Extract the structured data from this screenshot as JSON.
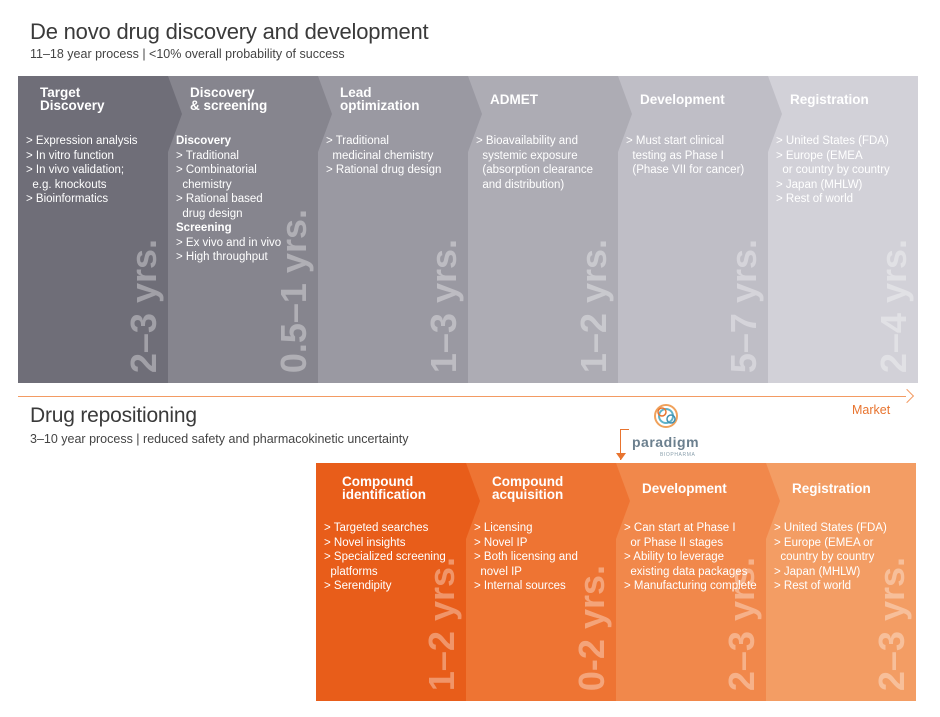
{
  "header": {
    "title": "De novo drug discovery and development",
    "subtitle": "11–18 year process  |  <10% overall probability of success"
  },
  "top_stages": [
    {
      "title": "Target\nDiscovery",
      "color": "#6f6e78",
      "items": [
        {
          "type": "bullet",
          "text": "Expression analysis"
        },
        {
          "type": "bullet",
          "text": "In vitro function"
        },
        {
          "type": "bullet",
          "text": "In vivo validation;\n  e.g. knockouts"
        },
        {
          "type": "bullet",
          "text": "Bioinformatics"
        }
      ],
      "years": "2–3 yrs."
    },
    {
      "title": "Discovery\n& screening",
      "color": "#86858e",
      "items": [
        {
          "type": "head",
          "text": "Discovery"
        },
        {
          "type": "bullet",
          "text": "Traditional"
        },
        {
          "type": "bullet",
          "text": "Combinatorial\n  chemistry"
        },
        {
          "type": "bullet",
          "text": "Rational based\n  drug design"
        },
        {
          "type": "head",
          "text": "Screening"
        },
        {
          "type": "bullet",
          "text": "Ex vivo and in vivo"
        },
        {
          "type": "bullet",
          "text": "High throughput"
        }
      ],
      "years": "0.5–1 yrs."
    },
    {
      "title": "Lead\noptimization",
      "color": "#9a99a2",
      "items": [
        {
          "type": "bullet",
          "text": "Traditional\n  medicinal chemistry"
        },
        {
          "type": "bullet",
          "text": "Rational drug design"
        }
      ],
      "years": "1–3 yrs."
    },
    {
      "title": "ADMET",
      "color": "#adacb4",
      "items": [
        {
          "type": "bullet",
          "text": "Bioavailability and\n  systemic exposure\n  (absorption clearance\n  and distribution)"
        }
      ],
      "years": "1–2 yrs."
    },
    {
      "title": "Development",
      "color": "#bfbec6",
      "items": [
        {
          "type": "bullet",
          "text": "Must start clinical\n  testing as Phase I\n  (Phase VII for cancer)"
        }
      ],
      "years": "5–7 yrs."
    },
    {
      "title": "Registration",
      "color": "#d2d1d8",
      "items": [
        {
          "type": "bullet",
          "text": "United States (FDA)"
        },
        {
          "type": "bullet",
          "text": "Europe (EMEA\n  or country by country"
        },
        {
          "type": "bullet",
          "text": "Japan (MHLW)"
        },
        {
          "type": "bullet",
          "text": "Rest of world"
        }
      ],
      "years": "2–4 yrs."
    }
  ],
  "timeline": {
    "label": "Market"
  },
  "logo": {
    "word": "paradigm",
    "small": "BIOPHARMA"
  },
  "repositioning": {
    "title": "Drug repositioning",
    "subtitle": "3–10 year process  |  reduced safety and pharmacokinetic uncertainty"
  },
  "bottom_stages": [
    {
      "title": "Compound\nidentification",
      "color": "#e85d1a",
      "items": [
        {
          "type": "bullet",
          "text": "Targeted searches"
        },
        {
          "type": "bullet",
          "text": "Novel insights"
        },
        {
          "type": "bullet",
          "text": "Specialized screening\n  platforms"
        },
        {
          "type": "bullet",
          "text": "Serendipity"
        }
      ],
      "years": "1–2 yrs."
    },
    {
      "title": "Compound\nacquisition",
      "color": "#ee7433",
      "items": [
        {
          "type": "bullet",
          "text": "Licensing"
        },
        {
          "type": "bullet",
          "text": "Novel IP"
        },
        {
          "type": "bullet",
          "text": "Both licensing and\n  novel IP"
        },
        {
          "type": "bullet",
          "text": "Internal sources"
        }
      ],
      "years": "0-2 yrs."
    },
    {
      "title": "Development",
      "color": "#f1884b",
      "items": [
        {
          "type": "bullet",
          "text": "Can start at Phase I\n  or Phase II stages"
        },
        {
          "type": "bullet",
          "text": "Ability to leverage\n  existing data packages"
        },
        {
          "type": "bullet",
          "text": "Manufacturing complete"
        }
      ],
      "years": "2–3 yrs."
    },
    {
      "title": "Registration",
      "color": "#f39d64",
      "items": [
        {
          "type": "bullet",
          "text": "United States (FDA)"
        },
        {
          "type": "bullet",
          "text": "Europe (EMEA or\n  country by country"
        },
        {
          "type": "bullet",
          "text": "Japan (MHLW)"
        },
        {
          "type": "bullet",
          "text": "Rest of world"
        }
      ],
      "years": "2–3 yrs."
    }
  ]
}
